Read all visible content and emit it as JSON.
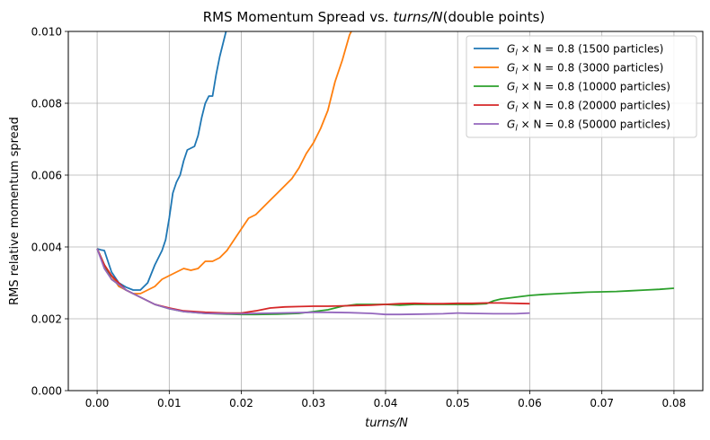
{
  "chart_data": {
    "type": "line",
    "title_prefix": "RMS Momentum Spread vs. ",
    "title_italic": "turns/N",
    "title_suffix": "(double points)",
    "xlabel": "turns/N",
    "ylabel": "RMS relative momentum spread",
    "xlim": [
      -0.004,
      0.084
    ],
    "ylim": [
      0.0,
      0.01
    ],
    "xticks": [
      0.0,
      0.01,
      0.02,
      0.03,
      0.04,
      0.05,
      0.06,
      0.07,
      0.08
    ],
    "xtick_labels": [
      "0.00",
      "0.01",
      "0.02",
      "0.03",
      "0.04",
      "0.05",
      "0.06",
      "0.07",
      "0.08"
    ],
    "yticks": [
      0.0,
      0.002,
      0.004,
      0.006,
      0.008,
      0.01
    ],
    "ytick_labels": [
      "0.000",
      "0.002",
      "0.004",
      "0.006",
      "0.008",
      "0.010"
    ],
    "grid": true,
    "legend_position": "top-right",
    "legend_prefix": "G",
    "legend_sub": "l",
    "legend_mid": " × N = 0.8",
    "series": [
      {
        "name": "(1500 particles)",
        "color": "#1f77b4",
        "x": [
          0.0,
          0.0005,
          0.001,
          0.002,
          0.003,
          0.004,
          0.005,
          0.006,
          0.007,
          0.008,
          0.009,
          0.0095,
          0.01,
          0.0105,
          0.011,
          0.0115,
          0.012,
          0.0125,
          0.013,
          0.0135,
          0.014,
          0.0145,
          0.015,
          0.0155,
          0.016,
          0.0165,
          0.017,
          0.0175,
          0.018
        ],
        "y": [
          0.00395,
          0.00392,
          0.0039,
          0.0033,
          0.003,
          0.00288,
          0.0028,
          0.0028,
          0.003,
          0.0035,
          0.0039,
          0.0042,
          0.0048,
          0.0055,
          0.0058,
          0.006,
          0.0064,
          0.0067,
          0.00675,
          0.0068,
          0.0071,
          0.0076,
          0.008,
          0.0082,
          0.0082,
          0.0088,
          0.0093,
          0.0097,
          0.0101
        ]
      },
      {
        "name": "(3000 particles)",
        "color": "#ff7f0e",
        "x": [
          0.0,
          0.001,
          0.002,
          0.003,
          0.004,
          0.005,
          0.006,
          0.007,
          0.008,
          0.009,
          0.01,
          0.011,
          0.012,
          0.013,
          0.014,
          0.015,
          0.016,
          0.017,
          0.018,
          0.019,
          0.02,
          0.021,
          0.022,
          0.023,
          0.024,
          0.025,
          0.026,
          0.027,
          0.028,
          0.029,
          0.03,
          0.031,
          0.032,
          0.033,
          0.034,
          0.035,
          0.0355
        ],
        "y": [
          0.00395,
          0.0035,
          0.0032,
          0.0029,
          0.0028,
          0.0027,
          0.0027,
          0.0028,
          0.0029,
          0.0031,
          0.0032,
          0.0033,
          0.0034,
          0.00335,
          0.0034,
          0.0036,
          0.0036,
          0.0037,
          0.0039,
          0.0042,
          0.0045,
          0.0048,
          0.0049,
          0.0051,
          0.0053,
          0.0055,
          0.0057,
          0.0059,
          0.0062,
          0.0066,
          0.0069,
          0.0073,
          0.0078,
          0.0086,
          0.0092,
          0.0099,
          0.0101
        ]
      },
      {
        "name": "(10000 particles)",
        "color": "#2ca02c",
        "x": [
          0.0,
          0.001,
          0.002,
          0.004,
          0.006,
          0.008,
          0.01,
          0.012,
          0.015,
          0.018,
          0.02,
          0.022,
          0.025,
          0.028,
          0.03,
          0.032,
          0.034,
          0.036,
          0.038,
          0.04,
          0.042,
          0.044,
          0.046,
          0.048,
          0.05,
          0.052,
          0.054,
          0.055,
          0.056,
          0.058,
          0.06,
          0.062,
          0.064,
          0.066,
          0.068,
          0.07,
          0.072,
          0.074,
          0.076,
          0.078,
          0.08
        ],
        "y": [
          0.00395,
          0.0035,
          0.0031,
          0.0028,
          0.0026,
          0.0024,
          0.00228,
          0.0022,
          0.00215,
          0.00213,
          0.00212,
          0.00212,
          0.00213,
          0.00215,
          0.0022,
          0.00225,
          0.00235,
          0.0024,
          0.0024,
          0.0024,
          0.00238,
          0.0024,
          0.0024,
          0.0024,
          0.0024,
          0.0024,
          0.00242,
          0.0025,
          0.00255,
          0.0026,
          0.00265,
          0.00268,
          0.0027,
          0.00272,
          0.00274,
          0.00275,
          0.00276,
          0.00278,
          0.0028,
          0.00282,
          0.00285
        ]
      },
      {
        "name": "(20000 particles)",
        "color": "#d62728",
        "x": [
          0.0,
          0.001,
          0.002,
          0.004,
          0.006,
          0.008,
          0.01,
          0.012,
          0.015,
          0.018,
          0.02,
          0.022,
          0.024,
          0.026,
          0.028,
          0.03,
          0.032,
          0.034,
          0.036,
          0.038,
          0.04,
          0.042,
          0.044,
          0.046,
          0.048,
          0.05,
          0.052,
          0.054,
          0.056,
          0.058,
          0.06
        ],
        "y": [
          0.00395,
          0.0035,
          0.0032,
          0.0028,
          0.0026,
          0.0024,
          0.0023,
          0.00222,
          0.00218,
          0.00216,
          0.00216,
          0.00222,
          0.0023,
          0.00233,
          0.00234,
          0.00235,
          0.00235,
          0.00236,
          0.00237,
          0.00238,
          0.0024,
          0.00242,
          0.00243,
          0.00242,
          0.00242,
          0.00243,
          0.00243,
          0.00244,
          0.00244,
          0.00243,
          0.00242
        ]
      },
      {
        "name": "(50000 particles)",
        "color": "#9467bd",
        "x": [
          0.0,
          0.001,
          0.002,
          0.004,
          0.006,
          0.008,
          0.01,
          0.012,
          0.015,
          0.018,
          0.02,
          0.022,
          0.025,
          0.028,
          0.03,
          0.032,
          0.035,
          0.038,
          0.04,
          0.042,
          0.045,
          0.048,
          0.05,
          0.052,
          0.055,
          0.058,
          0.06
        ],
        "y": [
          0.00395,
          0.0034,
          0.0031,
          0.0028,
          0.0026,
          0.0024,
          0.00228,
          0.0022,
          0.00215,
          0.00214,
          0.00214,
          0.00215,
          0.00216,
          0.00217,
          0.00218,
          0.00218,
          0.00217,
          0.00215,
          0.00212,
          0.00212,
          0.00213,
          0.00214,
          0.00216,
          0.00215,
          0.00214,
          0.00214,
          0.00216
        ]
      }
    ]
  }
}
